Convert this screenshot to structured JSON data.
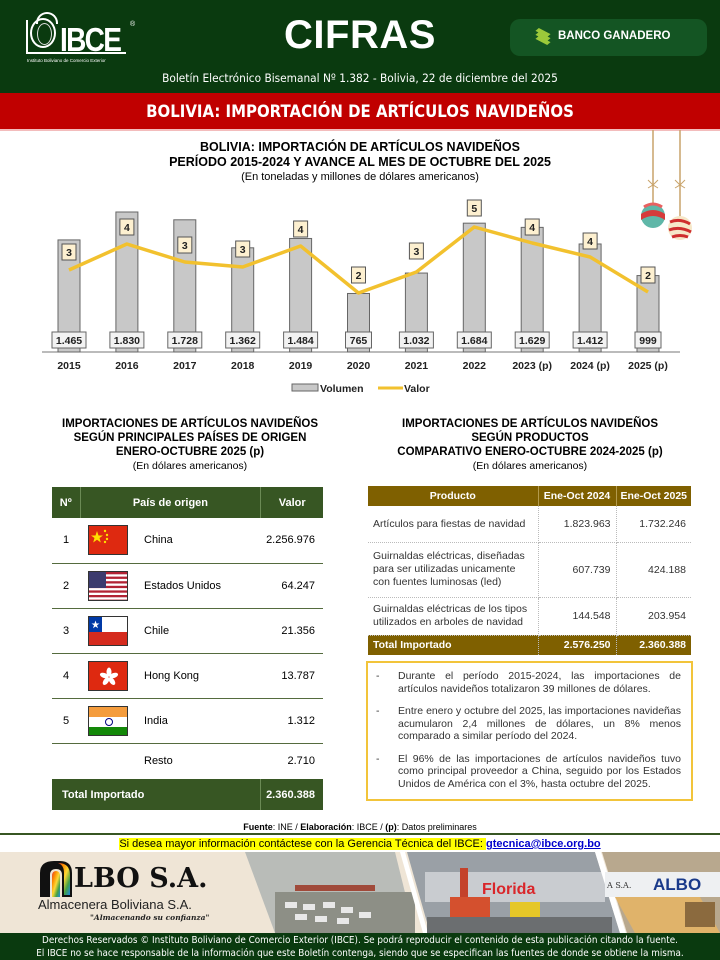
{
  "header": {
    "logo_text": "IBCE",
    "logo_registered": "®",
    "logo_subtitle": "Instituto Boliviano de Comercio Exterior",
    "title": "CIFRAS",
    "sponsor": "BANCO GANADERO",
    "bulletin": "Boletín Electrónico Bisemanal Nº 1.382 - Bolivia, 22 de diciembre del 2025"
  },
  "banner": {
    "title": "BOLIVIA: IMPORTACIÓN DE ARTÍCULOS NAVIDEÑOS",
    "color": "#c00000"
  },
  "chart_data": {
    "type": "bar",
    "title": "BOLIVIA: IMPORTACIÓN DE ARTÍCULOS NAVIDEÑOS",
    "subtitle_line2": "PERÍODO 2015-2024 Y AVANCE AL MES DE OCTUBRE DEL 2025",
    "units": "(En toneladas y millones de dólares americanos)",
    "categories": [
      "2015",
      "2016",
      "2017",
      "2018",
      "2019",
      "2020",
      "2021",
      "2022",
      "2023 (p)",
      "2024 (p)",
      "2025 (p)"
    ],
    "series": [
      {
        "name": "Volumen",
        "type": "bar",
        "color": "#c8c8c8",
        "values": [
          1465,
          1830,
          1728,
          1362,
          1484,
          765,
          1032,
          1684,
          1629,
          1412,
          999
        ],
        "labels": [
          "1.465",
          "1.830",
          "1.728",
          "1.362",
          "1.484",
          "765",
          "1.032",
          "1.684",
          "1.629",
          "1.412",
          "999"
        ]
      },
      {
        "name": "Valor",
        "type": "line",
        "color": "#f2c12e",
        "values": [
          3,
          4,
          3,
          3,
          4,
          2,
          3,
          5,
          4,
          4,
          2
        ],
        "labels": [
          "3",
          "4",
          "3",
          "3",
          "4",
          "2",
          "3",
          "5",
          "4",
          "4",
          "2"
        ]
      }
    ],
    "xlabel": "",
    "ylabel": "",
    "grid": false,
    "legend_position": "bottom",
    "legend": [
      "Volumen",
      "Valor"
    ]
  },
  "countries_section": {
    "title_lines": [
      "IMPORTACIONES DE ARTÍCULOS NAVIDEÑOS",
      "SEGÚN PRINCIPALES PAÍSES DE ORIGEN",
      "ENERO-OCTUBRE 2025 (p)"
    ],
    "units": "(En dólares americanos)",
    "headers": [
      "Nº",
      "País de origen",
      "Valor"
    ],
    "rows": [
      {
        "n": "1",
        "flag": "china-flag",
        "country": "China",
        "value": "2.256.976"
      },
      {
        "n": "2",
        "flag": "usa-flag",
        "country": "Estados Unidos",
        "value": "64.247"
      },
      {
        "n": "3",
        "flag": "chile-flag",
        "country": "Chile",
        "value": "21.356"
      },
      {
        "n": "4",
        "flag": "hong-kong-flag",
        "country": "Hong Kong",
        "value": "13.787"
      },
      {
        "n": "5",
        "flag": "india-flag",
        "country": "India",
        "value": "1.312"
      }
    ],
    "resto": {
      "label": "Resto",
      "value": "2.710"
    },
    "total": {
      "label": "Total Importado",
      "value": "2.360.388"
    },
    "color": "#375623"
  },
  "products_section": {
    "title_lines": [
      "IMPORTACIONES DE ARTÍCULOS NAVIDEÑOS",
      "SEGÚN PRODUCTOS",
      "COMPARATIVO ENERO-OCTUBRE 2024-2025 (p)"
    ],
    "units": "(En dólares americanos)",
    "headers": [
      "Producto",
      "Ene-Oct 2024",
      "Ene-Oct 2025"
    ],
    "rows": [
      {
        "product": "Artículos para fiestas de navidad",
        "v2024": "1.823.963",
        "v2025": "1.732.246"
      },
      {
        "product": "Guirnaldas eléctricas, diseñadas para ser utilizadas unicamente con fuentes luminosas (led)",
        "v2024": "607.739",
        "v2025": "424.188"
      },
      {
        "product": "Guirnaldas eléctricas de los tipos utilizados en arboles de navidad",
        "v2024": "144.548",
        "v2025": "203.954"
      }
    ],
    "total": {
      "label": "Total Importado",
      "v2024": "2.576.250",
      "v2025": "2.360.388"
    },
    "color": "#7f6000"
  },
  "notes": [
    {
      "bullet": "-",
      "text": "Durante el período 2015-2024, las importaciones de artículos navideños totalizaron 39 millones de dólares."
    },
    {
      "bullet": "-",
      "text": "Entre enero y octubre del 2025, las importaciones navideñas acumularon 2,4 millones de dólares, un 8% menos comparado a similar período del 2024."
    },
    {
      "bullet": "-",
      "text": "El 96% de las importaciones de artículos navideños tuvo como principal proveedor a China, seguido por los Estados Unidos de América con el 3%, hasta octubre del 2025."
    }
  ],
  "source": {
    "fuente_label": "Fuente",
    "fuente_value": ": INE / ",
    "elaboracion_label": "Elaboración",
    "elaboracion_value": ": IBCE / ",
    "p_label": "(p)",
    "p_value": ": Datos preliminares"
  },
  "contact": {
    "text": "Si desea mayor información contáctese con la Gerencia Técnica del IBCE: ",
    "email": "gtecnica@ibce.org.bo"
  },
  "ad": {
    "brand": "LBO S.A.",
    "company": "Almacenera Boliviana S.A.",
    "slogan": "\"Almacenando su confianza\"",
    "photo_sign_1": "Florida",
    "photo_sign_2": "ALBO",
    "photo_sign_3": "A S.A."
  },
  "footer": {
    "line1": "Derechos Reservados © Instituto Boliviano de Comercio Exterior (IBCE). Se podrá reproducir el contenido de esta publicación citando la fuente.",
    "line2": "El IBCE no se hace responsable de la información que este Boletín contenga, siendo que se especifican las fuentes de donde se obtiene la misma."
  }
}
